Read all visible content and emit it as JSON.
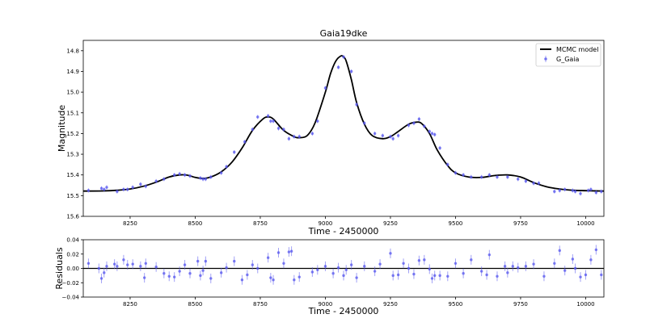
{
  "chart_data": [
    {
      "type": "scatter",
      "title": "Gaia19dke",
      "xlabel": "Time - 2450000",
      "ylabel": "Magnitude",
      "xlim": [
        8070,
        10070
      ],
      "ylim": [
        15.6,
        14.75
      ],
      "y_inverted": true,
      "x_ticks": [
        8250,
        8500,
        8750,
        9000,
        9250,
        9500,
        9750,
        10000
      ],
      "y_ticks": [
        14.8,
        14.9,
        15.0,
        15.1,
        15.2,
        15.3,
        15.4,
        15.5,
        15.6
      ],
      "y_tick_labels": [
        "14.8",
        "14.9",
        "15.0",
        "15.1",
        "15.2",
        "15.3",
        "15.4",
        "15.5",
        "15.6"
      ],
      "legend_position": "top-right",
      "model_color": "#000000",
      "data_color": "#5555ee",
      "series": [
        {
          "name": "MCMC model",
          "kind": "line",
          "x": [
            8070,
            8150,
            8200,
            8250,
            8300,
            8350,
            8400,
            8440,
            8470,
            8500,
            8530,
            8560,
            8600,
            8640,
            8680,
            8720,
            8760,
            8780,
            8800,
            8840,
            8880,
            8900,
            8930,
            8960,
            9000,
            9020,
            9040,
            9060,
            9070,
            9080,
            9100,
            9120,
            9150,
            9180,
            9220,
            9250,
            9280,
            9320,
            9350,
            9370,
            9400,
            9430,
            9470,
            9500,
            9550,
            9600,
            9650,
            9700,
            9750,
            9800,
            9850,
            9900,
            9950,
            10000,
            10070
          ],
          "y": [
            15.478,
            15.477,
            15.474,
            15.468,
            15.455,
            15.435,
            15.41,
            15.4,
            15.401,
            15.412,
            15.417,
            15.41,
            15.385,
            15.34,
            15.27,
            15.185,
            15.13,
            15.12,
            15.13,
            15.185,
            15.215,
            15.22,
            15.21,
            15.15,
            15.0,
            14.91,
            14.85,
            14.825,
            14.83,
            14.85,
            14.94,
            15.05,
            15.155,
            15.21,
            15.225,
            15.215,
            15.19,
            15.155,
            15.145,
            15.152,
            15.2,
            15.28,
            15.355,
            15.39,
            15.41,
            15.412,
            15.403,
            15.4,
            15.41,
            15.437,
            15.457,
            15.468,
            15.474,
            15.476,
            15.478
          ]
        },
        {
          "name": "G_Gaia",
          "kind": "errorbar",
          "x": [
            8090,
            8140,
            8150,
            8160,
            8200,
            8225,
            8240,
            8260,
            8290,
            8310,
            8350,
            8380,
            8420,
            8440,
            8460,
            8480,
            8520,
            8530,
            8540,
            8560,
            8600,
            8620,
            8650,
            8690,
            8720,
            8740,
            8780,
            8790,
            8800,
            8820,
            8840,
            8860,
            8880,
            8900,
            8950,
            8970,
            9000,
            9050,
            9070,
            9100,
            9120,
            9150,
            9190,
            9220,
            9250,
            9260,
            9280,
            9320,
            9340,
            9360,
            9380,
            9400,
            9410,
            9420,
            9440,
            9470,
            9500,
            9530,
            9560,
            9600,
            9630,
            9660,
            9700,
            9740,
            9770,
            9800,
            9820,
            9880,
            9900,
            9920,
            9950,
            9960,
            9980,
            10010,
            10020,
            10040,
            10060
          ],
          "y": [
            15.475,
            15.465,
            15.47,
            15.46,
            15.48,
            15.47,
            15.47,
            15.46,
            15.445,
            15.455,
            15.43,
            15.42,
            15.4,
            15.395,
            15.4,
            15.405,
            15.415,
            15.42,
            15.42,
            15.41,
            15.39,
            15.36,
            15.29,
            15.24,
            15.18,
            15.12,
            15.115,
            15.14,
            15.14,
            15.175,
            15.18,
            15.225,
            15.215,
            15.215,
            15.2,
            15.14,
            14.98,
            14.88,
            14.83,
            14.9,
            15.06,
            15.15,
            15.2,
            15.21,
            15.215,
            15.225,
            15.21,
            15.16,
            15.15,
            15.13,
            15.165,
            15.19,
            15.2,
            15.205,
            15.27,
            15.35,
            15.39,
            15.4,
            15.41,
            15.41,
            15.4,
            15.41,
            15.41,
            15.42,
            15.43,
            15.44,
            15.44,
            15.48,
            15.475,
            15.47,
            15.475,
            15.48,
            15.49,
            15.475,
            15.47,
            15.485,
            15.48
          ],
          "yerr": 0.01
        }
      ]
    },
    {
      "type": "scatter",
      "title": "",
      "xlabel": "Time - 2450000",
      "ylabel": "Residuals",
      "xlim": [
        8070,
        10070
      ],
      "ylim": [
        -0.04,
        0.04
      ],
      "x_ticks": [
        8250,
        8500,
        8750,
        9000,
        9250,
        9500,
        9750,
        10000
      ],
      "y_ticks": [
        -0.04,
        -0.02,
        0.0,
        0.02,
        0.04
      ],
      "y_tick_labels": [
        "−0.04",
        "−0.02",
        "0.00",
        "0.02",
        "0.04"
      ],
      "zero_line": true,
      "data_color": "#5555ee",
      "series": [
        {
          "name": "G_Gaia",
          "kind": "errorbar",
          "x": [
            8090,
            8130,
            8140,
            8150,
            8160,
            8190,
            8200,
            8225,
            8240,
            8260,
            8290,
            8305,
            8310,
            8350,
            8380,
            8400,
            8420,
            8440,
            8460,
            8480,
            8510,
            8520,
            8530,
            8540,
            8560,
            8600,
            8620,
            8650,
            8680,
            8700,
            8720,
            8740,
            8780,
            8790,
            8800,
            8820,
            8840,
            8860,
            8870,
            8880,
            8900,
            8950,
            8970,
            9000,
            9030,
            9050,
            9070,
            9080,
            9100,
            9120,
            9150,
            9190,
            9210,
            9250,
            9260,
            9280,
            9300,
            9320,
            9340,
            9360,
            9380,
            9400,
            9410,
            9420,
            9440,
            9470,
            9500,
            9530,
            9560,
            9600,
            9620,
            9630,
            9660,
            9690,
            9700,
            9720,
            9740,
            9770,
            9800,
            9840,
            9880,
            9900,
            9920,
            9950,
            9960,
            9980,
            10000,
            10020,
            10040,
            10060
          ],
          "y": [
            0.007,
            0.0,
            -0.014,
            -0.006,
            0.003,
            0.006,
            0.003,
            0.012,
            0.005,
            0.006,
            0.003,
            -0.013,
            0.007,
            0.002,
            -0.007,
            -0.011,
            -0.012,
            -0.004,
            0.005,
            -0.007,
            0.01,
            -0.01,
            -0.003,
            0.01,
            -0.014,
            -0.006,
            0.001,
            0.01,
            -0.016,
            -0.009,
            0.005,
            0.0,
            0.015,
            -0.013,
            -0.016,
            0.022,
            0.007,
            0.023,
            0.024,
            -0.016,
            -0.012,
            -0.005,
            -0.002,
            0.003,
            -0.007,
            0.001,
            -0.01,
            -0.002,
            0.005,
            -0.013,
            0.003,
            -0.004,
            0.006,
            0.021,
            -0.01,
            -0.009,
            0.007,
            0.0,
            -0.008,
            0.011,
            0.012,
            -0.001,
            -0.014,
            -0.01,
            -0.01,
            -0.011,
            0.007,
            -0.007,
            0.012,
            -0.004,
            -0.009,
            0.019,
            -0.011,
            0.003,
            -0.006,
            0.003,
            0.001,
            0.003,
            0.006,
            -0.011,
            0.007,
            0.025,
            -0.003,
            0.013,
            0.0,
            -0.012,
            -0.009,
            0.012,
            0.026,
            -0.009
          ]
        }
      ]
    }
  ]
}
